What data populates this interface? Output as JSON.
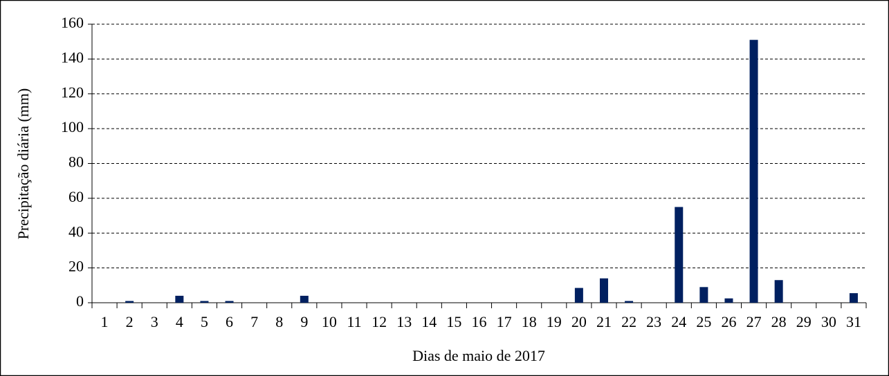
{
  "chart_data": {
    "type": "bar",
    "xlabel": "Dias de maio de 2017",
    "ylabel": "Precipitação diária (mm)",
    "categories": [
      "1",
      "2",
      "3",
      "4",
      "5",
      "6",
      "7",
      "8",
      "9",
      "10",
      "11",
      "12",
      "13",
      "14",
      "15",
      "16",
      "17",
      "18",
      "19",
      "20",
      "21",
      "22",
      "23",
      "24",
      "25",
      "26",
      "27",
      "28",
      "29",
      "30",
      "31"
    ],
    "values": [
      0,
      1,
      0,
      4,
      1,
      1,
      0,
      0,
      4,
      0,
      0,
      0,
      0,
      0,
      0,
      0,
      0,
      0,
      0,
      8.5,
      14,
      1,
      0,
      55,
      9,
      2.5,
      151,
      13,
      0,
      0,
      5.5
    ],
    "color": "#002060",
    "ylim": [
      0,
      160
    ],
    "yticks": [
      0,
      20,
      40,
      60,
      80,
      100,
      120,
      140,
      160
    ],
    "grid": true
  }
}
